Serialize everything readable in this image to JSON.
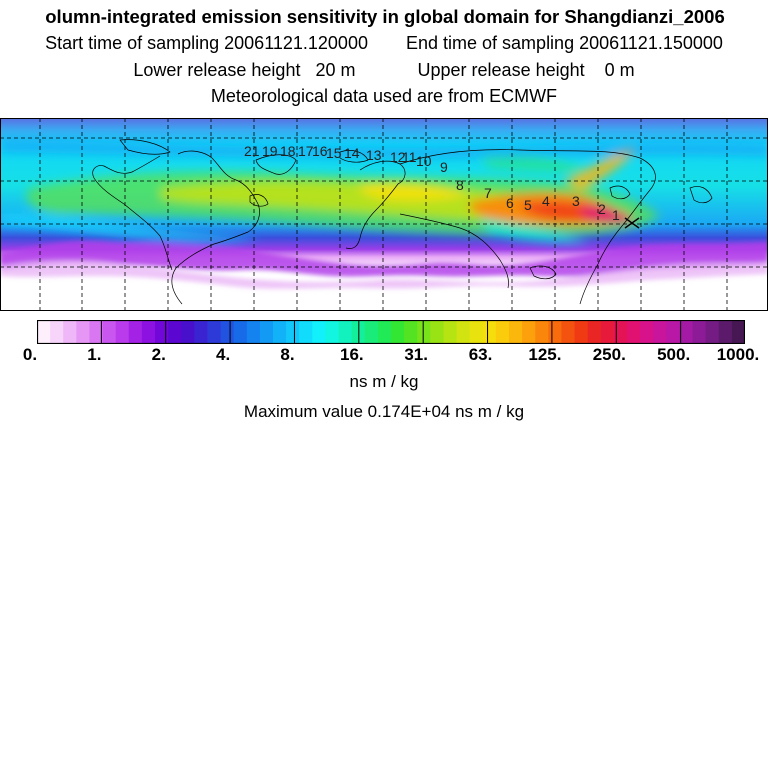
{
  "header": {
    "title": "olumn-integrated emission sensitivity in global domain for Shangdianzi_2006",
    "start_label": "Start time of sampling 20061121.120000",
    "end_label": "End time of sampling 20061121.150000",
    "lower_label": "Lower release height   20 m",
    "upper_label": "Upper release height    0 m",
    "met_label": "Meteorological data used are from ECMWF"
  },
  "map": {
    "type": "column-integrated emission sensitivity",
    "station_marker": "Shangdianzi",
    "trajectory_labels": [
      "21",
      "19",
      "18",
      "17",
      "16",
      "15",
      "14",
      "13",
      "12",
      "11",
      "10",
      "9",
      "8",
      "7",
      "6",
      "5",
      "4",
      "3",
      "2",
      "1"
    ]
  },
  "colorbar": {
    "units": "ns m / kg",
    "tick_labels": [
      "0.",
      "1.",
      "2.",
      "4.",
      "8.",
      "16.",
      "31.",
      "63.",
      "125.",
      "250.",
      "500.",
      "1000."
    ],
    "colors": [
      "#fdeffc",
      "#f7d5fa",
      "#efb6f8",
      "#e697f5",
      "#d977f2",
      "#c957ef",
      "#b93beb",
      "#a421e6",
      "#8d12e2",
      "#7108d9",
      "#5c06d2",
      "#4810cb",
      "#3a24d2",
      "#2d3ad8",
      "#2252e0",
      "#176ae8",
      "#1482ef",
      "#139af4",
      "#12b2f8",
      "#12c8fa",
      "#12dcfc",
      "#12f0fc",
      "#12f5e0",
      "#12f2bf",
      "#14ef9c",
      "#1aec7a",
      "#20ea55",
      "#33e634",
      "#54e322",
      "#78e21a",
      "#99e214",
      "#b6e312",
      "#d1e310",
      "#e8e30e",
      "#f6dd0c",
      "#fbcc0c",
      "#fcb70c",
      "#fca00c",
      "#fb860c",
      "#f86c0d",
      "#f4520f",
      "#ef3a14",
      "#ea2624",
      "#e71a3c",
      "#e41356",
      "#e01170",
      "#d7128a",
      "#c9149c",
      "#b917a5",
      "#a41aa4",
      "#8d1b98",
      "#741b84",
      "#5c1a6b",
      "#461752"
    ],
    "max_label": "Maximum value  0.174E+04 ns m / kg"
  }
}
